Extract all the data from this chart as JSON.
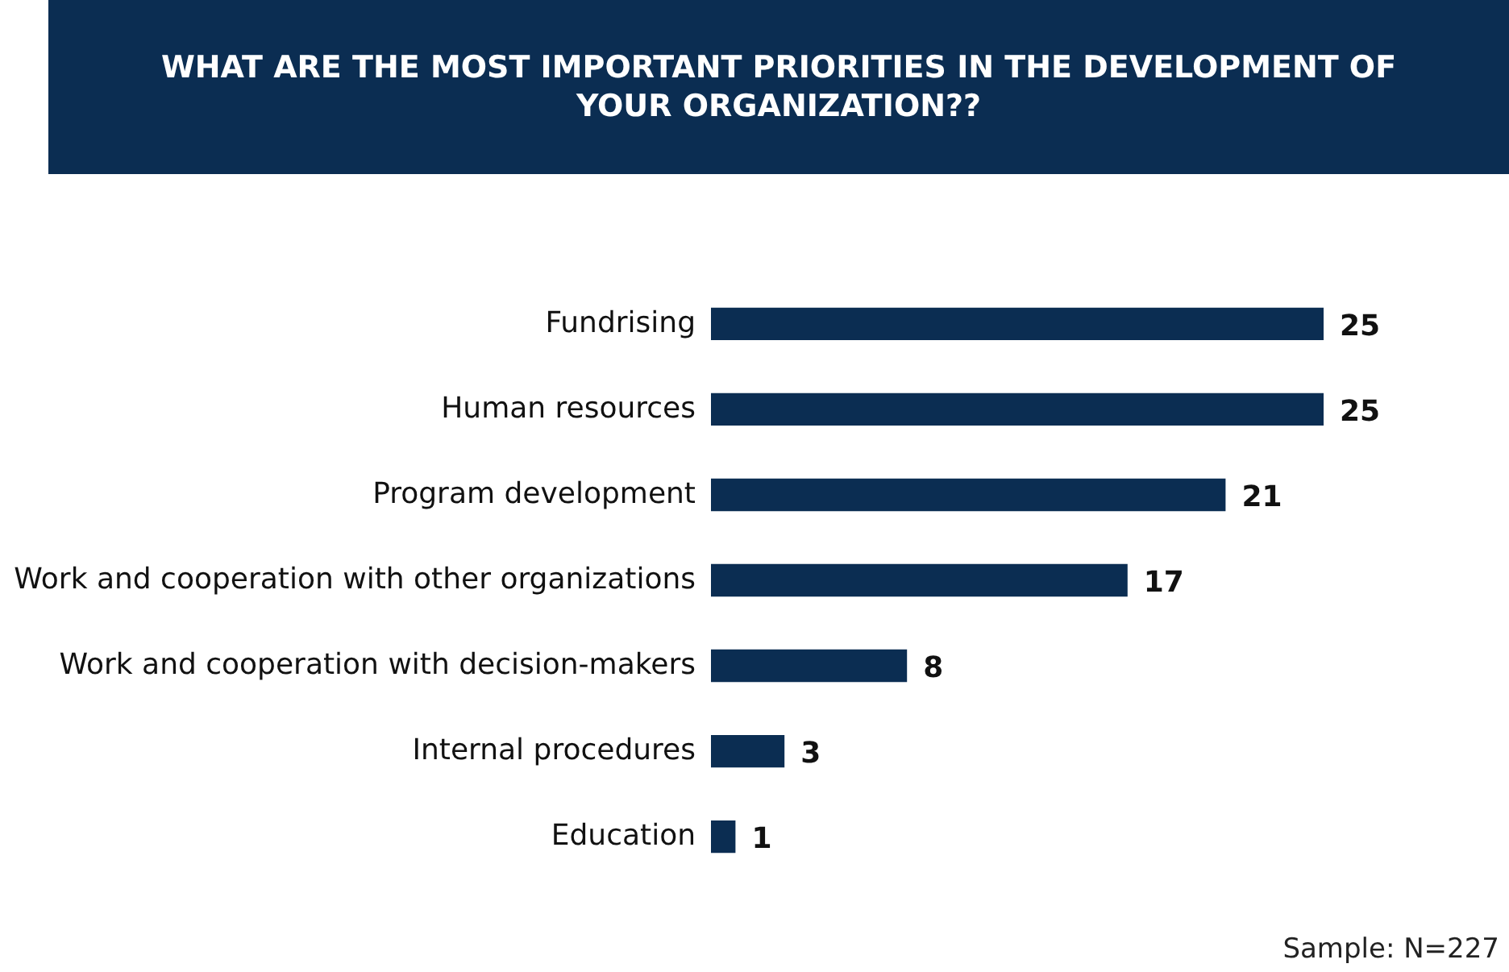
{
  "chart_data": {
    "type": "bar",
    "orientation": "horizontal",
    "title": "WHAT ARE THE MOST IMPORTANT PRIORITIES IN THE DEVELOPMENT OF YOUR ORGANIZATION??",
    "categories": [
      "Fundrising",
      "Human resources",
      "Program development",
      "Work and cooperation with other organizations",
      "Work and cooperation with decision-makers",
      "Internal procedures",
      "Education"
    ],
    "values": [
      25,
      25,
      21,
      17,
      8,
      3,
      1
    ],
    "color": "#0b2d52",
    "data_labels": true,
    "annotations": [
      "Sample: N=227"
    ]
  }
}
